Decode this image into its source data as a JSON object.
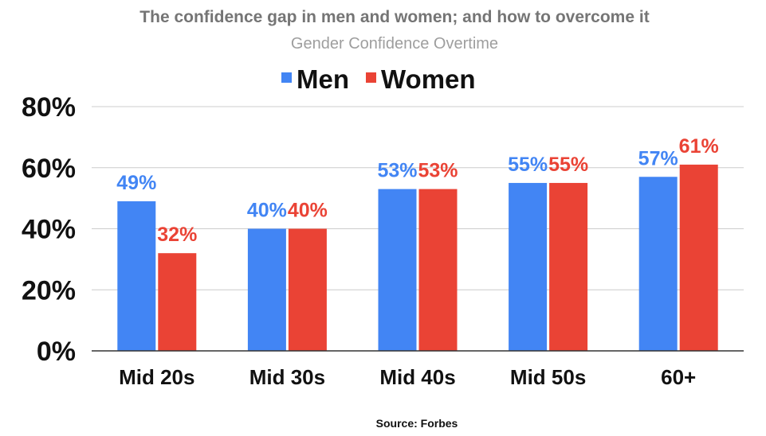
{
  "chart_data": {
    "type": "bar",
    "title": "The confidence gap in men and women; and how to overcome it",
    "subtitle": "Gender Confidence Overtime",
    "categories": [
      "Mid 20s",
      "Mid 30s",
      "Mid 40s",
      "Mid 50s",
      "60+"
    ],
    "series": [
      {
        "name": "Men",
        "color": "#4285F4",
        "values": [
          49,
          40,
          53,
          55,
          57
        ],
        "labels": [
          "49%",
          "40%",
          "53%",
          "55%",
          "57%"
        ]
      },
      {
        "name": "Women",
        "color": "#EA4335",
        "values": [
          32,
          40,
          53,
          55,
          61
        ],
        "labels": [
          "32%",
          "40%",
          "53%",
          "55%",
          "61%"
        ]
      }
    ],
    "ylim": [
      0,
      80
    ],
    "yticks": [
      0,
      20,
      40,
      60,
      80
    ],
    "ytick_labels": [
      "0%",
      "20%",
      "40%",
      "60%",
      "80%"
    ],
    "xlabel": "",
    "ylabel": "",
    "grid": true,
    "legend_position": "top-center",
    "source": "Source: Forbes"
  },
  "colors": {
    "title": "#757575",
    "subtitle": "#9E9E9E",
    "text": "#111111",
    "grid": "#CCCCCC",
    "axis": "#333333"
  }
}
